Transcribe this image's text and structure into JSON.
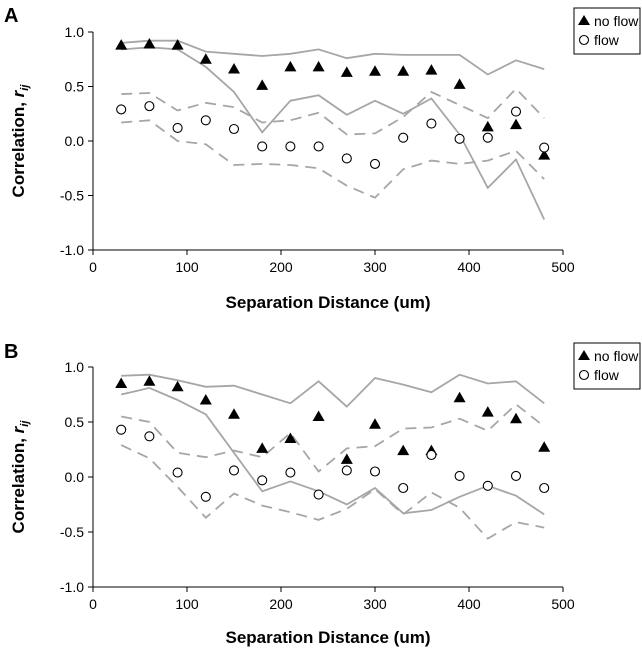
{
  "chart_data": [
    {
      "panel": "A",
      "type": "scatter",
      "xlabel": "Separation Distance (um)",
      "ylabel_main": "Correlation, ",
      "ylabel_var": "r",
      "ylabel_sub": "ij",
      "xlim": [
        0,
        500
      ],
      "ylim": [
        -1.0,
        1.0
      ],
      "xticks": [
        0,
        100,
        200,
        300,
        400,
        500
      ],
      "yticks": [
        -1.0,
        -0.5,
        0.0,
        0.5,
        1.0
      ],
      "xtick_labels": [
        "0",
        "100",
        "200",
        "300",
        "400",
        "500"
      ],
      "ytick_labels": [
        "-1.0",
        "-0.5",
        "0.0",
        "0.5",
        "1.0"
      ],
      "grid": false,
      "legend_position": "top-right",
      "x": [
        30,
        60,
        90,
        120,
        150,
        180,
        210,
        240,
        270,
        300,
        330,
        360,
        390,
        420,
        450,
        480
      ],
      "series": [
        {
          "name": "no flow",
          "marker": "filled-triangle",
          "color": "#000000",
          "values": [
            0.88,
            0.89,
            0.88,
            0.75,
            0.66,
            0.51,
            0.68,
            0.68,
            0.63,
            0.64,
            0.64,
            0.65,
            0.52,
            0.13,
            0.15,
            -0.13
          ]
        },
        {
          "name": "flow",
          "marker": "open-circle",
          "color": "#000000",
          "values": [
            0.29,
            0.32,
            0.12,
            0.19,
            0.11,
            -0.05,
            -0.05,
            -0.05,
            -0.16,
            -0.21,
            0.03,
            0.16,
            0.02,
            0.03,
            0.27,
            -0.06
          ]
        }
      ],
      "bands": [
        {
          "style": "solid",
          "color": "#a6a6a6",
          "values": [
            0.9,
            0.92,
            0.92,
            0.82,
            0.8,
            0.78,
            0.8,
            0.84,
            0.76,
            0.8,
            0.79,
            0.79,
            0.79,
            0.61,
            0.74,
            0.66
          ]
        },
        {
          "style": "solid",
          "color": "#a6a6a6",
          "values": [
            0.84,
            0.86,
            0.84,
            0.68,
            0.45,
            0.08,
            0.37,
            0.42,
            0.24,
            0.37,
            0.25,
            0.39,
            0.06,
            -0.43,
            -0.17,
            -0.72
          ]
        },
        {
          "style": "dashed",
          "color": "#a6a6a6",
          "values": [
            0.43,
            0.44,
            0.28,
            0.35,
            0.31,
            0.17,
            0.19,
            0.26,
            0.06,
            0.07,
            0.22,
            0.45,
            0.33,
            0.21,
            0.48,
            0.21
          ]
        },
        {
          "style": "dashed",
          "color": "#a6a6a6",
          "values": [
            0.17,
            0.19,
            0.0,
            -0.03,
            -0.22,
            -0.21,
            -0.22,
            -0.25,
            -0.41,
            -0.52,
            -0.26,
            -0.18,
            -0.21,
            -0.18,
            -0.09,
            -0.35
          ]
        }
      ]
    },
    {
      "panel": "B",
      "type": "scatter",
      "xlabel": "Separation Distance (um)",
      "ylabel_main": "Correlation, ",
      "ylabel_var": "r",
      "ylabel_sub": "ij",
      "xlim": [
        0,
        500
      ],
      "ylim": [
        -1.0,
        1.0
      ],
      "xticks": [
        0,
        100,
        200,
        300,
        400,
        500
      ],
      "yticks": [
        -1.0,
        -0.5,
        0.0,
        0.5,
        1.0
      ],
      "xtick_labels": [
        "0",
        "100",
        "200",
        "300",
        "400",
        "500"
      ],
      "ytick_labels": [
        "-1.0",
        "-0.5",
        "0.0",
        "0.5",
        "1.0"
      ],
      "grid": false,
      "legend_position": "top-right",
      "x": [
        30,
        60,
        90,
        120,
        150,
        180,
        210,
        240,
        270,
        300,
        330,
        360,
        390,
        420,
        450,
        480
      ],
      "series": [
        {
          "name": "no flow",
          "marker": "filled-triangle",
          "color": "#000000",
          "values": [
            0.85,
            0.87,
            0.82,
            0.7,
            0.57,
            0.26,
            0.35,
            0.55,
            0.16,
            0.48,
            0.24,
            0.24,
            0.72,
            0.59,
            0.53,
            0.27
          ]
        },
        {
          "name": "flow",
          "marker": "open-circle",
          "color": "#000000",
          "values": [
            0.43,
            0.37,
            0.04,
            -0.18,
            0.06,
            -0.03,
            0.04,
            -0.16,
            0.06,
            0.05,
            -0.1,
            0.2,
            0.01,
            -0.08,
            0.01,
            -0.1
          ]
        }
      ],
      "bands": [
        {
          "style": "solid",
          "color": "#a6a6a6",
          "values": [
            0.92,
            0.93,
            0.88,
            0.82,
            0.83,
            0.75,
            0.67,
            0.87,
            0.64,
            0.9,
            0.84,
            0.77,
            0.93,
            0.85,
            0.87,
            0.67
          ]
        },
        {
          "style": "solid",
          "color": "#a6a6a6",
          "values": [
            0.75,
            0.81,
            0.7,
            0.57,
            0.22,
            -0.13,
            -0.04,
            -0.13,
            -0.25,
            -0.1,
            -0.33,
            -0.3,
            -0.18,
            -0.08,
            -0.17,
            -0.34
          ]
        },
        {
          "style": "dashed",
          "color": "#a6a6a6",
          "values": [
            0.55,
            0.5,
            0.22,
            0.18,
            0.24,
            0.18,
            0.4,
            0.05,
            0.26,
            0.28,
            0.44,
            0.45,
            0.53,
            0.42,
            0.66,
            0.46
          ]
        },
        {
          "style": "dashed",
          "color": "#a6a6a6",
          "values": [
            0.29,
            0.17,
            -0.09,
            -0.37,
            -0.15,
            -0.26,
            -0.32,
            -0.39,
            -0.29,
            -0.11,
            -0.34,
            -0.14,
            -0.28,
            -0.56,
            -0.41,
            -0.46
          ]
        }
      ]
    }
  ]
}
